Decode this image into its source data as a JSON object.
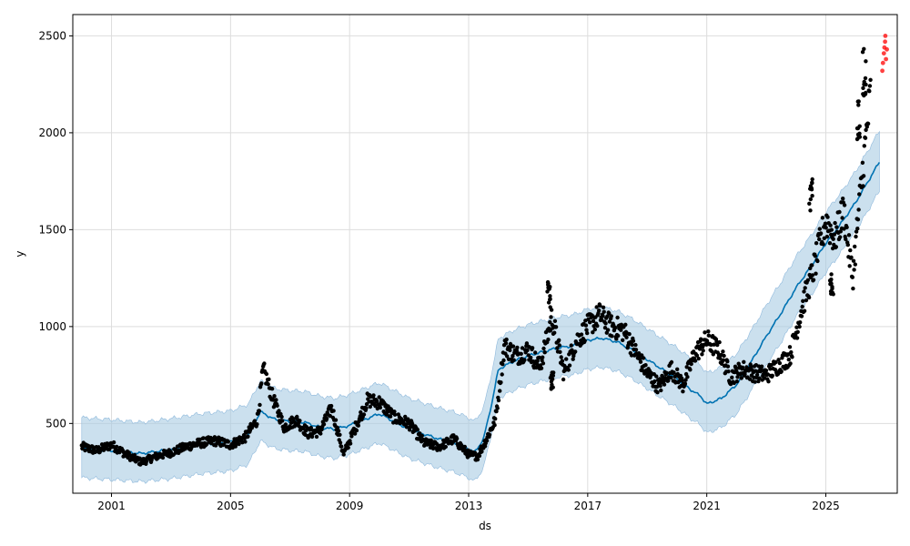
{
  "chart_data": {
    "type": "line",
    "title": "",
    "xlabel": "ds",
    "ylabel": "y",
    "xlim": [
      1999.7,
      2027.4
    ],
    "ylim": [
      140,
      2610
    ],
    "grid": true,
    "x_ticks": [
      2001,
      2005,
      2009,
      2013,
      2017,
      2021,
      2025
    ],
    "x_tick_labels": [
      "2001",
      "2005",
      "2009",
      "2013",
      "2017",
      "2021",
      "2025"
    ],
    "y_ticks": [
      500,
      1000,
      1500,
      2000,
      2500
    ],
    "y_tick_labels": [
      "500",
      "1000",
      "1500",
      "2000",
      "2500"
    ],
    "colors": {
      "forecast_line": "#0072B2",
      "uncertainty_band": "#a9cbe3",
      "observed_points": "#000000",
      "outlier_points": "#ff0000",
      "grid": "#dddddd"
    },
    "forecast": {
      "name": "",
      "x": [
        2000.0,
        2001.0,
        2002.0,
        2003.0,
        2004.0,
        2005.0,
        2005.6,
        2006.0,
        2006.5,
        2007.0,
        2007.5,
        2008.0,
        2008.5,
        2009.0,
        2009.5,
        2010.0,
        2010.5,
        2011.0,
        2011.5,
        2012.0,
        2012.5,
        2013.0,
        2013.2,
        2013.5,
        2013.8,
        2014.0,
        2014.5,
        2015.0,
        2015.5,
        2016.0,
        2016.5,
        2017.0,
        2017.5,
        2018.0,
        2018.5,
        2019.0,
        2019.5,
        2020.0,
        2020.5,
        2020.8,
        2021.0,
        2021.5,
        2022.0,
        2022.5,
        2023.0,
        2023.5,
        2024.0,
        2024.5,
        2025.0,
        2025.5,
        2026.0,
        2026.5,
        2026.8
      ],
      "yhat": [
        370,
        360,
        345,
        365,
        390,
        405,
        440,
        560,
        520,
        510,
        505,
        480,
        470,
        490,
        520,
        550,
        510,
        470,
        445,
        420,
        400,
        370,
        350,
        420,
        620,
        780,
        820,
        850,
        870,
        890,
        900,
        930,
        940,
        920,
        880,
        830,
        780,
        730,
        670,
        640,
        600,
        630,
        700,
        820,
        950,
        1070,
        1200,
        1310,
        1430,
        1530,
        1640,
        1770,
        1850
      ],
      "yhat_lower": [
        220,
        210,
        200,
        215,
        240,
        255,
        290,
        410,
        370,
        360,
        355,
        330,
        320,
        340,
        370,
        400,
        360,
        320,
        295,
        270,
        250,
        220,
        200,
        270,
        470,
        630,
        670,
        700,
        720,
        740,
        750,
        780,
        790,
        770,
        730,
        680,
        630,
        580,
        520,
        490,
        450,
        480,
        550,
        670,
        800,
        920,
        1050,
        1160,
        1280,
        1380,
        1490,
        1620,
        1700
      ],
      "yhat_upper": [
        530,
        520,
        505,
        525,
        550,
        565,
        600,
        720,
        680,
        670,
        665,
        640,
        630,
        650,
        680,
        710,
        670,
        630,
        605,
        580,
        560,
        530,
        510,
        580,
        780,
        940,
        980,
        1010,
        1030,
        1050,
        1060,
        1090,
        1100,
        1080,
        1040,
        990,
        940,
        890,
        830,
        800,
        760,
        790,
        860,
        980,
        1110,
        1230,
        1360,
        1470,
        1590,
        1690,
        1800,
        1930,
        2010
      ]
    },
    "observed": {
      "name": "",
      "x": [
        2000.0,
        2000.5,
        2001.0,
        2001.5,
        2002.0,
        2002.5,
        2003.0,
        2003.5,
        2004.0,
        2004.5,
        2005.0,
        2005.5,
        2005.9,
        2006.1,
        2006.4,
        2006.8,
        2007.2,
        2007.6,
        2008.0,
        2008.4,
        2008.8,
        2009.2,
        2009.6,
        2010.0,
        2010.5,
        2011.0,
        2011.5,
        2012.0,
        2012.5,
        2013.0,
        2013.3,
        2013.6,
        2013.9,
        2014.2,
        2014.6,
        2015.0,
        2015.4,
        2015.8,
        2016.2,
        2016.6,
        2017.0,
        2017.4,
        2017.8,
        2018.2,
        2018.6,
        2019.0,
        2019.4,
        2019.8,
        2020.2,
        2020.6,
        2021.0,
        2021.4,
        2021.8,
        2022.2,
        2022.6,
        2023.0,
        2023.4,
        2023.8,
        2024.2,
        2024.6,
        2025.0,
        2025.3,
        2025.6,
        2025.9,
        2026.2,
        2026.5
      ],
      "y": [
        380,
        360,
        390,
        340,
        300,
        330,
        350,
        380,
        400,
        410,
        390,
        430,
        520,
        780,
        640,
        480,
        520,
        450,
        460,
        580,
        340,
        480,
        620,
        610,
        530,
        500,
        400,
        380,
        420,
        340,
        330,
        420,
        520,
        900,
        850,
        880,
        790,
        1050,
        760,
        920,
        1000,
        1060,
        1000,
        980,
        870,
        760,
        690,
        780,
        700,
        860,
        930,
        880,
        740,
        780,
        760,
        750,
        800,
        850,
        1100,
        1300,
        1550,
        1450,
        1600,
        1250,
        1750,
        2200
      ],
      "y_extra_swings": [
        [
          2015.7,
          1160
        ],
        [
          2015.8,
          720
        ],
        [
          2024.5,
          1700
        ],
        [
          2025.2,
          1200
        ],
        [
          2026.1,
          2050
        ],
        [
          2026.3,
          2300
        ]
      ]
    },
    "outliers": {
      "name": "",
      "x": [
        2026.9,
        2026.92,
        2026.95,
        2026.97,
        2026.99,
        2027.0,
        2027.02,
        2027.05
      ],
      "y": [
        2320,
        2360,
        2410,
        2440,
        2470,
        2500,
        2380,
        2430
      ]
    }
  }
}
